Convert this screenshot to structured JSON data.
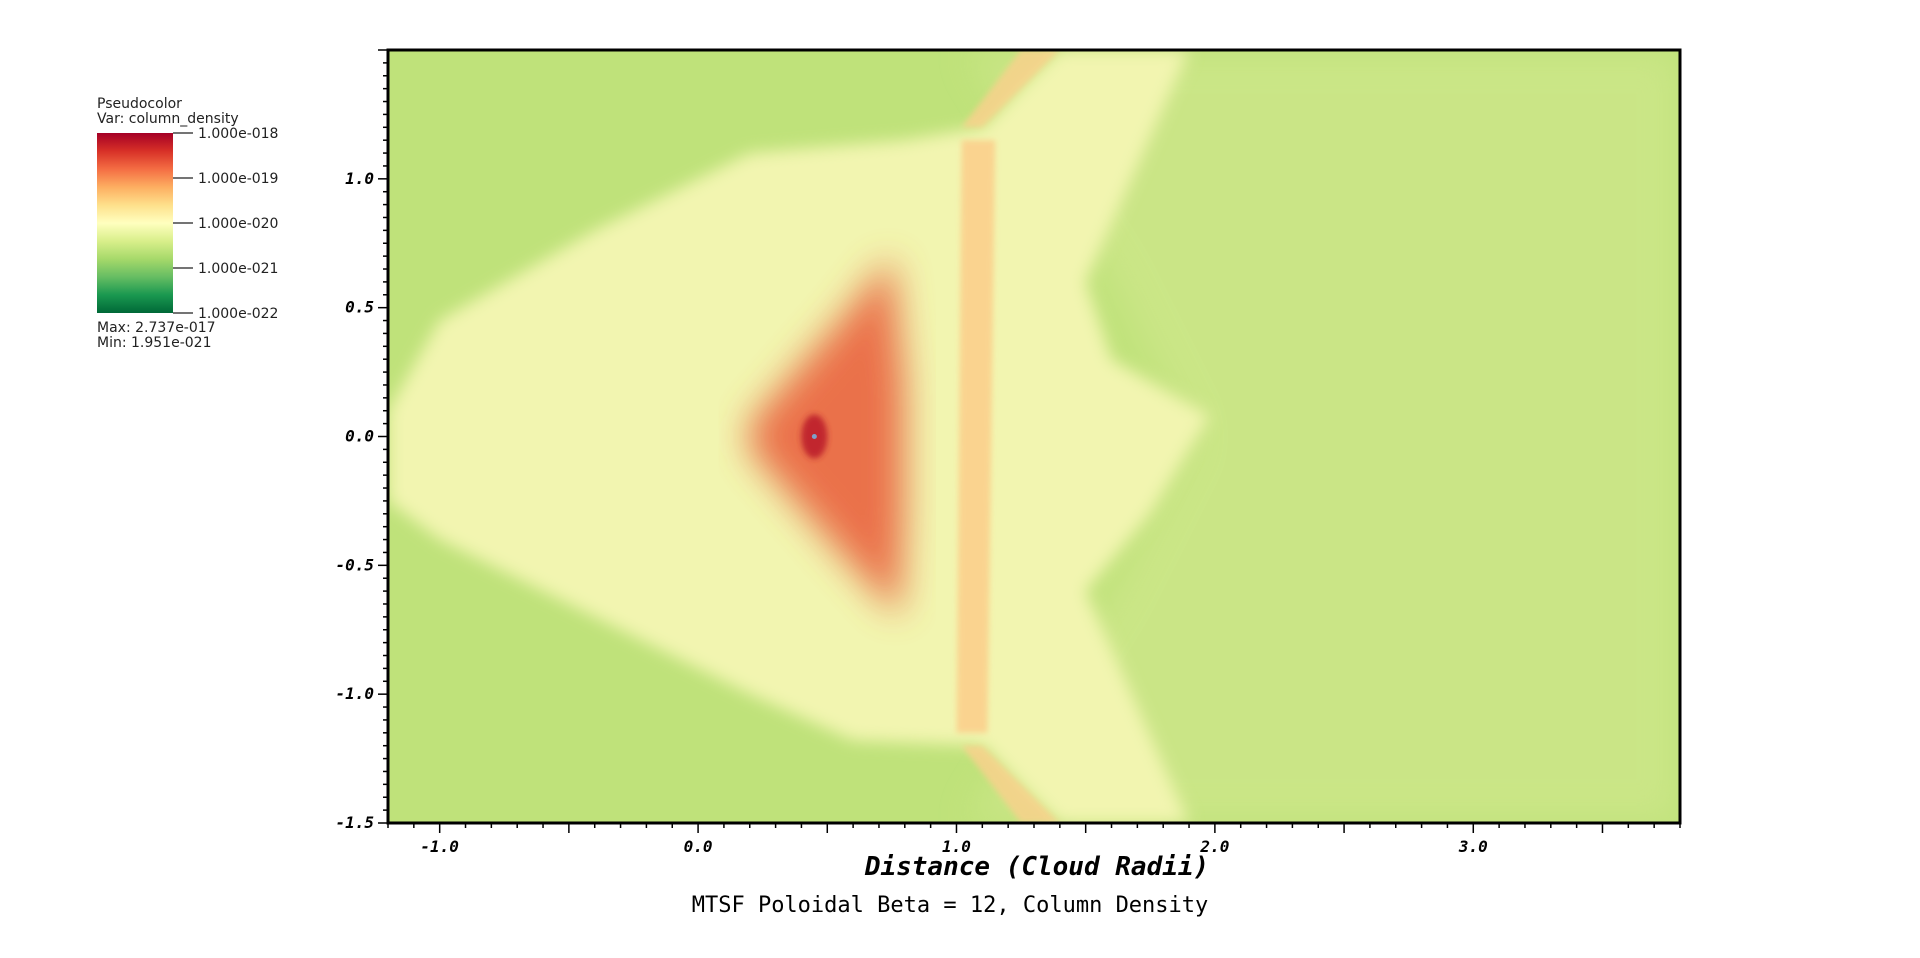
{
  "chart_data": {
    "type": "heatmap",
    "title": "MTSF Poloidal Beta = 12, Column Density",
    "xlabel": "Distance (Cloud Radii)",
    "ylabel": "",
    "xlim": [
      -1.2,
      3.8
    ],
    "ylim": [
      -1.5,
      1.5
    ],
    "x_ticks": [
      {
        "value": -1.0,
        "label": "-1.0"
      },
      {
        "value": 0.0,
        "label": "0.0"
      },
      {
        "value": 1.0,
        "label": "1.0"
      },
      {
        "value": 2.0,
        "label": "2.0"
      },
      {
        "value": 3.0,
        "label": "3.0"
      }
    ],
    "y_ticks": [
      {
        "value": 1.0,
        "label": "1.0"
      },
      {
        "value": 0.5,
        "label": "0.5"
      },
      {
        "value": 0.0,
        "label": "0.0"
      },
      {
        "value": -0.5,
        "label": "-0.5"
      },
      {
        "value": -1.0,
        "label": "-1.0"
      },
      {
        "value": -1.5,
        "label": "-1.5"
      }
    ],
    "colorbar": {
      "header": "Pseudocolor",
      "variable": "Var: column_density",
      "scale": "log",
      "ticks": [
        {
          "value": 1e-18,
          "label": "1.000e-018"
        },
        {
          "value": 1e-19,
          "label": "1.000e-019"
        },
        {
          "value": 1e-20,
          "label": "1.000e-020"
        },
        {
          "value": 1e-21,
          "label": "1.000e-021"
        },
        {
          "value": 1e-22,
          "label": "1.000e-022"
        }
      ],
      "max_label": "Max:  2.737e-017",
      "min_label": "Min:  1.951e-021",
      "colors": [
        "#a50026",
        "#d73027",
        "#f46d43",
        "#fdae61",
        "#fee08b",
        "#ffffbf",
        "#d9ef8b",
        "#a6d96a",
        "#66bd63",
        "#1a9850",
        "#006837"
      ]
    },
    "field_colors": {
      "background": "#bfe27a",
      "envelope": "#f2f5b0",
      "core": "#ea6a45",
      "dense": "#c1272d",
      "shock": "#fbd08c",
      "wake": "#d4e991"
    }
  }
}
